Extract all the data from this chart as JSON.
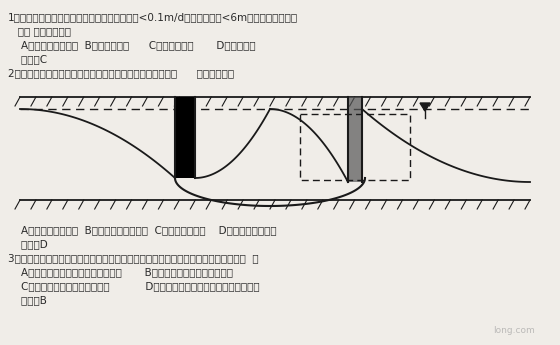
{
  "bg_color": "#f0ede8",
  "text_color": "#2a2a2a",
  "line1": "1、有一基坑的地下土质为粘性土，其渗透系数<0.1m/d；其降水深度<6m；此种基坑适宜采",
  "line2": "   用（ ）降水方法？",
  "line3": "    A、明排井（坑）；  B、真空井点；      C、电渗井点；       D、大口井；",
  "line4": "    答案：C",
  "line5": "2、根据《建筑基坑支护技术规程》中的规定，判断下图为（      ）类型的井？",
  "line6": "    A、承压水完整井；  B、承压水非完整井；  C、潜水完整井；    D、潜水非完整井；",
  "line7": "    答案：D",
  "line8": "3、在基坑开挖中可以减缓或避免地下水的渗透变形和渗透破环施工中常采用的方法（  ）",
  "line9": "    A、在基坑周围打入钢筋砼灌注桩；       B、在基坑周围打入止水雉幕；",
  "line10": "    C、在基坑周围采用拉锚护坡；           D、在基坑周围采用土钉墙的方法护坡；",
  "line11": "    答案：B",
  "watermark": "long.com",
  "font_size": 7.5
}
